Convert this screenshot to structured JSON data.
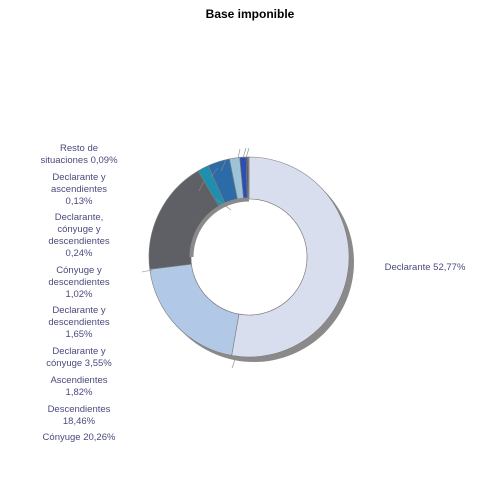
{
  "chart_data": {
    "type": "pie",
    "style": "donut",
    "title": "Base imponible",
    "slices": [
      {
        "label": "Declarante",
        "value": 52.77,
        "label_text": "Declarante 52,77%",
        "color": "#d9deee"
      },
      {
        "label": "Cónyuge",
        "value": 20.26,
        "label_text": "Cónyuge 20,26%",
        "color": "#b1c8e6"
      },
      {
        "label": "Descendientes",
        "value": 18.46,
        "label_text": "Descendientes 18,46%",
        "color": "#5f6066"
      },
      {
        "label": "Ascendientes",
        "value": 1.82,
        "label_text": "Ascendientes 1,82%",
        "color": "#1f8fb0"
      },
      {
        "label": "Declarante y cónyuge",
        "value": 3.55,
        "label_text": "Declarante y cónyuge 3,55%",
        "color": "#2d6aa8"
      },
      {
        "label": "Declarante y descendientes",
        "value": 1.65,
        "label_text": "Declarante y descendientes 1,65%",
        "color": "#9dc3d8"
      },
      {
        "label": "Cónyuge y descendientes",
        "value": 1.02,
        "label_text": "Cónyuge y descendientes 1,02%",
        "color": "#2b4fb0"
      },
      {
        "label": "Declarante, cónyuge y descendientes",
        "value": 0.24,
        "label_text": "Declarante, cónyuge y descendientes 0,24%",
        "color": "#3d3d6b"
      },
      {
        "label": "Declarante y ascendientes",
        "value": 0.13,
        "label_text": "Declarante y ascendientes 0,13%",
        "color": "#a87ca6"
      },
      {
        "label": "Resto de situaciones",
        "value": 0.09,
        "label_text": "Resto de situaciones 0,09%",
        "color": "#d06a28"
      }
    ]
  },
  "labels": [
    {
      "lines": [
        "Resto de",
        "situaciones 0,09%"
      ]
    },
    {
      "lines": [
        "Declarante y",
        "ascendientes",
        "0,13%"
      ]
    },
    {
      "lines": [
        "Declarante,",
        "cónyuge y",
        "descendientes",
        "0,24%"
      ]
    },
    {
      "lines": [
        "Cónyuge y",
        "descendientes",
        "1,02%"
      ]
    },
    {
      "lines": [
        "Declarante y",
        "descendientes",
        "1,65%"
      ]
    },
    {
      "lines": [
        "Declarante y",
        "cónyuge 3,55%"
      ]
    },
    {
      "lines": [
        "Ascendientes",
        "1,82%"
      ]
    },
    {
      "lines": [
        "Descendientes",
        "18,46%"
      ]
    },
    {
      "lines": [
        "Cónyuge 20,26%"
      ]
    },
    {
      "lines": [
        "Declarante 52,77%"
      ]
    }
  ]
}
